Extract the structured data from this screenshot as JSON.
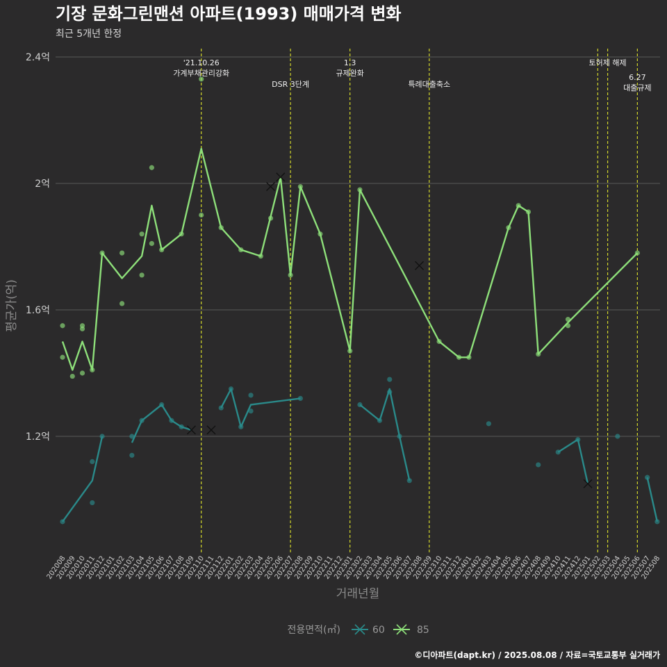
{
  "title": "기장 문화그린맨션 아파트(1993) 매매가격 변화",
  "subtitle": "최근 5개년 한정",
  "footer": "©디아파트(dapt.kr) / 2025.08.08 / 자료=국토교통부 실거래가",
  "legend": {
    "title": "전용면적(㎡)",
    "items": [
      "60",
      "85"
    ]
  },
  "colors": {
    "series_60": "#2a8a8a",
    "series_85": "#8ee07a",
    "event_line": "#d4d82a",
    "grid": "#6a6a6a"
  },
  "chart_data": {
    "type": "line",
    "xlabel": "거래년월",
    "ylabel": "평균가(억)",
    "ylim": [
      0.85,
      2.45
    ],
    "yticks": [
      1.2,
      1.6,
      2.0,
      2.4
    ],
    "ytick_labels": [
      "1.2억",
      "1.6억",
      "2억",
      "2.4억"
    ],
    "categories": [
      "202008",
      "202009",
      "202010",
      "202011",
      "202012",
      "202101",
      "202102",
      "202103",
      "202104",
      "202105",
      "202106",
      "202107",
      "202108",
      "202109",
      "202110",
      "202111",
      "202112",
      "202201",
      "202202",
      "202203",
      "202204",
      "202205",
      "202206",
      "202207",
      "202208",
      "202209",
      "202210",
      "202211",
      "202212",
      "202301",
      "202302",
      "202303",
      "202304",
      "202305",
      "202306",
      "202307",
      "202308",
      "202309",
      "202310",
      "202311",
      "202312",
      "202401",
      "202402",
      "202403",
      "202404",
      "202405",
      "202406",
      "202407",
      "202408",
      "202409",
      "202410",
      "202411",
      "202412",
      "202501",
      "202502",
      "202503",
      "202504",
      "202505",
      "202506",
      "202507",
      "202508"
    ],
    "series": [
      {
        "name": "60",
        "lines": [
          [
            [
              "202008",
              0.93
            ],
            [
              "202011",
              1.06
            ],
            [
              "202012",
              1.2
            ]
          ],
          [
            [
              "202103",
              1.18
            ],
            [
              "202104",
              1.25
            ],
            [
              "202106",
              1.3
            ],
            [
              "202107",
              1.25
            ],
            [
              "202108",
              1.23
            ],
            [
              "202109",
              1.22
            ]
          ],
          [
            [
              "202112",
              1.29
            ],
            [
              "202201",
              1.35
            ],
            [
              "202202",
              1.23
            ],
            [
              "202203",
              1.3
            ],
            [
              "202208",
              1.32
            ]
          ],
          [
            [
              "202302",
              1.3
            ],
            [
              "202304",
              1.25
            ],
            [
              "202305",
              1.35
            ],
            [
              "202306",
              1.2
            ],
            [
              "202307",
              1.06
            ]
          ],
          [
            [
              "202410",
              1.15
            ],
            [
              "202412",
              1.19
            ],
            [
              "202501",
              1.05
            ]
          ],
          [
            [
              "202507",
              1.07
            ],
            [
              "202508",
              0.93
            ]
          ]
        ],
        "points": [
          [
            "202008",
            0.93
          ],
          [
            "202011",
            1.12
          ],
          [
            "202011",
            0.99
          ],
          [
            "202012",
            1.2
          ],
          [
            "202103",
            1.2
          ],
          [
            "202103",
            1.14
          ],
          [
            "202104",
            1.25
          ],
          [
            "202106",
            1.3
          ],
          [
            "202107",
            1.25
          ],
          [
            "202108",
            1.23
          ],
          [
            "202112",
            1.29
          ],
          [
            "202201",
            1.35
          ],
          [
            "202202",
            1.23
          ],
          [
            "202203",
            1.33
          ],
          [
            "202203",
            1.28
          ],
          [
            "202208",
            1.32
          ],
          [
            "202302",
            1.3
          ],
          [
            "202304",
            1.25
          ],
          [
            "202305",
            1.38
          ],
          [
            "202305",
            1.34
          ],
          [
            "202306",
            1.2
          ],
          [
            "202307",
            1.06
          ],
          [
            "202403",
            1.24
          ],
          [
            "202408",
            1.11
          ],
          [
            "202410",
            1.15
          ],
          [
            "202412",
            1.19
          ],
          [
            "202504",
            1.2
          ],
          [
            "202507",
            1.07
          ],
          [
            "202508",
            0.93
          ]
        ],
        "crosses": [
          [
            "202109",
            1.22
          ],
          [
            "202111",
            1.22
          ],
          [
            "202501",
            1.05
          ]
        ]
      },
      {
        "name": "85",
        "lines": [
          [
            [
              "202008",
              1.5
            ],
            [
              "202009",
              1.41
            ],
            [
              "202010",
              1.5
            ],
            [
              "202011",
              1.41
            ],
            [
              "202012",
              1.78
            ],
            [
              "202102",
              1.7
            ],
            [
              "202104",
              1.77
            ],
            [
              "202105",
              1.93
            ],
            [
              "202106",
              1.79
            ],
            [
              "202108",
              1.84
            ],
            [
              "202110",
              2.11
            ],
            [
              "202112",
              1.86
            ],
            [
              "202202",
              1.79
            ],
            [
              "202204",
              1.77
            ],
            [
              "202206",
              2.02
            ],
            [
              "202207",
              1.71
            ],
            [
              "202208",
              1.99
            ],
            [
              "202210",
              1.84
            ],
            [
              "202301",
              1.47
            ],
            [
              "202302",
              1.98
            ],
            [
              "202310",
              1.5
            ],
            [
              "202312",
              1.45
            ],
            [
              "202401",
              1.45
            ],
            [
              "202405",
              1.86
            ],
            [
              "202406",
              1.93
            ],
            [
              "202407",
              1.91
            ],
            [
              "202408",
              1.46
            ],
            [
              "202411",
              1.56
            ],
            [
              "202506",
              1.78
            ]
          ]
        ],
        "points": [
          [
            "202008",
            1.55
          ],
          [
            "202008",
            1.45
          ],
          [
            "202009",
            1.39
          ],
          [
            "202010",
            1.55
          ],
          [
            "202010",
            1.54
          ],
          [
            "202010",
            1.4
          ],
          [
            "202011",
            1.41
          ],
          [
            "202012",
            1.78
          ],
          [
            "202102",
            1.78
          ],
          [
            "202102",
            1.62
          ],
          [
            "202104",
            1.84
          ],
          [
            "202104",
            1.71
          ],
          [
            "202105",
            2.05
          ],
          [
            "202105",
            1.81
          ],
          [
            "202106",
            1.79
          ],
          [
            "202108",
            1.84
          ],
          [
            "202110",
            2.33
          ],
          [
            "202110",
            1.9
          ],
          [
            "202112",
            1.86
          ],
          [
            "202202",
            1.79
          ],
          [
            "202204",
            1.77
          ],
          [
            "202205",
            1.89
          ],
          [
            "202207",
            1.71
          ],
          [
            "202208",
            1.99
          ],
          [
            "202210",
            1.84
          ],
          [
            "202301",
            1.47
          ],
          [
            "202302",
            1.98
          ],
          [
            "202310",
            1.5
          ],
          [
            "202312",
            1.45
          ],
          [
            "202401",
            1.45
          ],
          [
            "202405",
            1.86
          ],
          [
            "202406",
            1.93
          ],
          [
            "202407",
            1.91
          ],
          [
            "202408",
            1.46
          ],
          [
            "202411",
            1.57
          ],
          [
            "202411",
            1.55
          ],
          [
            "202506",
            1.78
          ]
        ],
        "crosses": [
          [
            "202205",
            1.99
          ],
          [
            "202206",
            2.02
          ],
          [
            "202308",
            1.74
          ]
        ]
      }
    ],
    "events": [
      {
        "x": "202110",
        "label": [
          "'21.10.26",
          "가계부채관리강화"
        ],
        "level": 1
      },
      {
        "x": "202207",
        "label": [
          "DSR 3단계"
        ],
        "level": 2
      },
      {
        "x": "202301",
        "label": [
          "1.3",
          "규제완화"
        ],
        "level": 1
      },
      {
        "x": "202309",
        "label": [
          "특례대출축소"
        ],
        "level": 2
      },
      {
        "x": "202502",
        "label": [],
        "level": 0
      },
      {
        "x": "202503",
        "label": [
          "토허제 해제"
        ],
        "level": 1
      },
      {
        "x": "202506",
        "label": [
          "6.27",
          "대출규제"
        ],
        "level": 3
      }
    ]
  }
}
